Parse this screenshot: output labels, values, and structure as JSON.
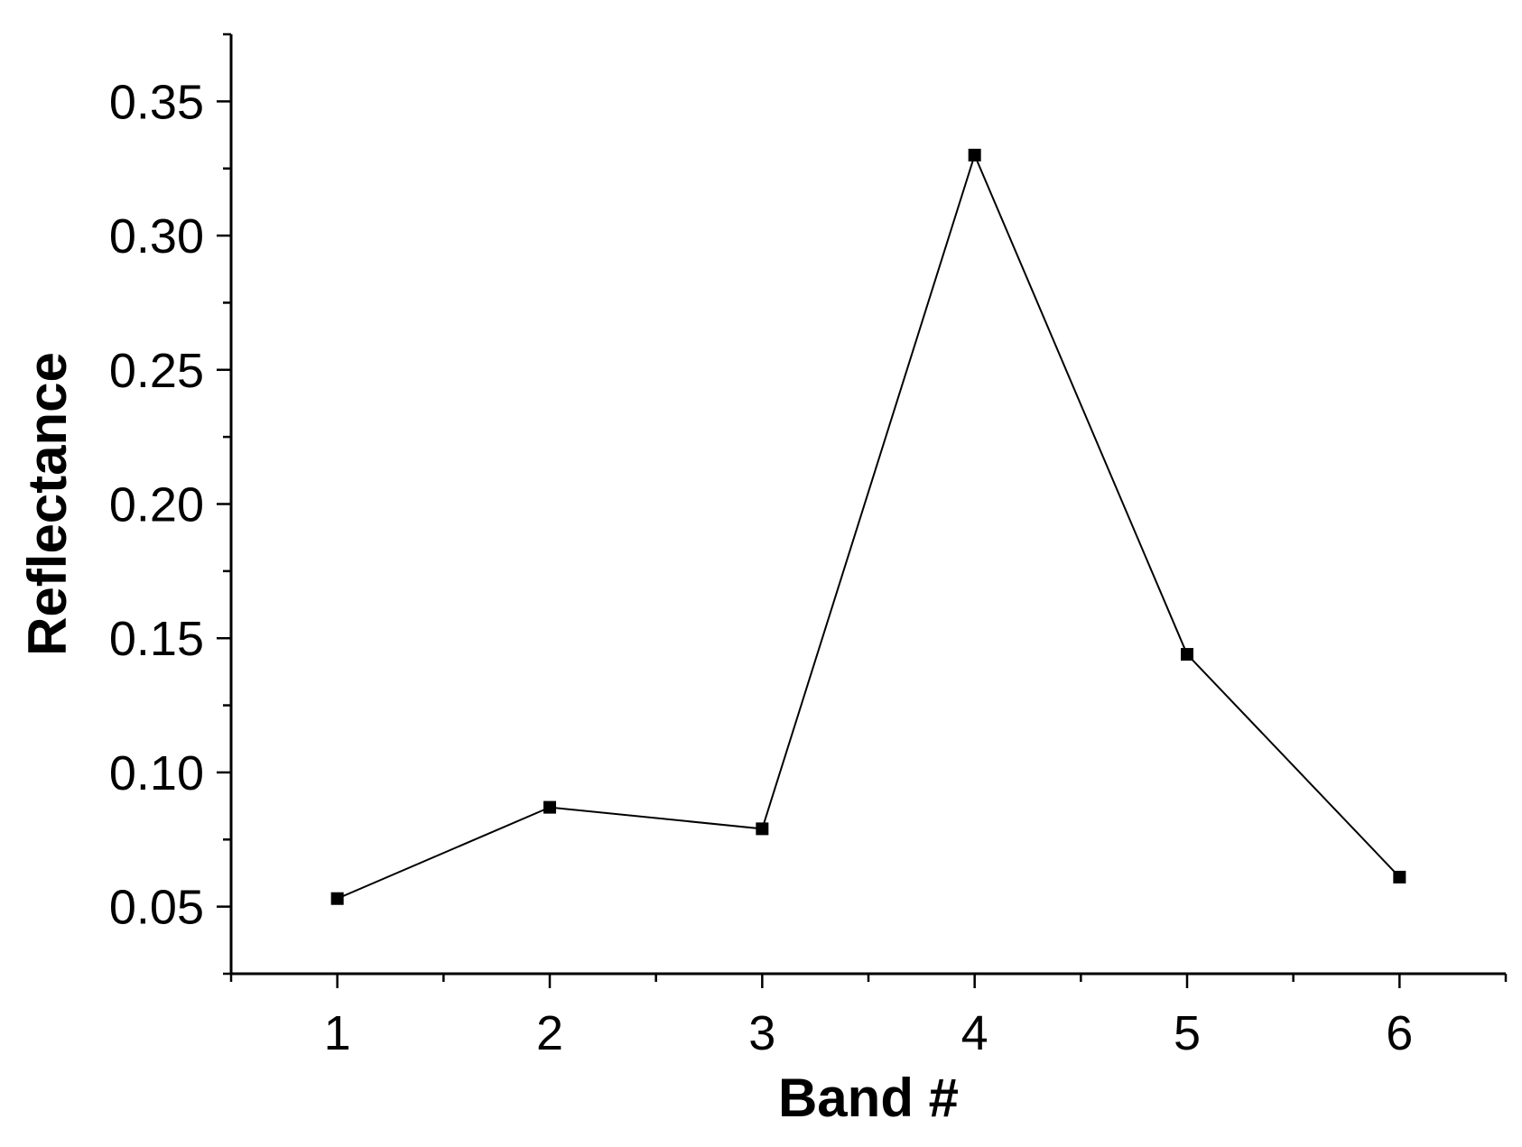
{
  "chart_data": {
    "type": "line",
    "title": "",
    "xlabel": "Band #",
    "ylabel": "Reflectance",
    "x": [
      1,
      2,
      3,
      4,
      5,
      6
    ],
    "xticks": [
      "1",
      "2",
      "3",
      "4",
      "5",
      "6"
    ],
    "xlim": [
      0.5,
      6.5
    ],
    "ylim": [
      0.025,
      0.375
    ],
    "yticks": [
      "0.05",
      "0.10",
      "0.15",
      "0.20",
      "0.25",
      "0.30",
      "0.35"
    ],
    "grid": false,
    "series": [
      {
        "values": [
          0.053,
          0.087,
          0.079,
          0.33,
          0.144,
          0.061
        ],
        "color": "#000000",
        "marker": "square"
      }
    ]
  }
}
